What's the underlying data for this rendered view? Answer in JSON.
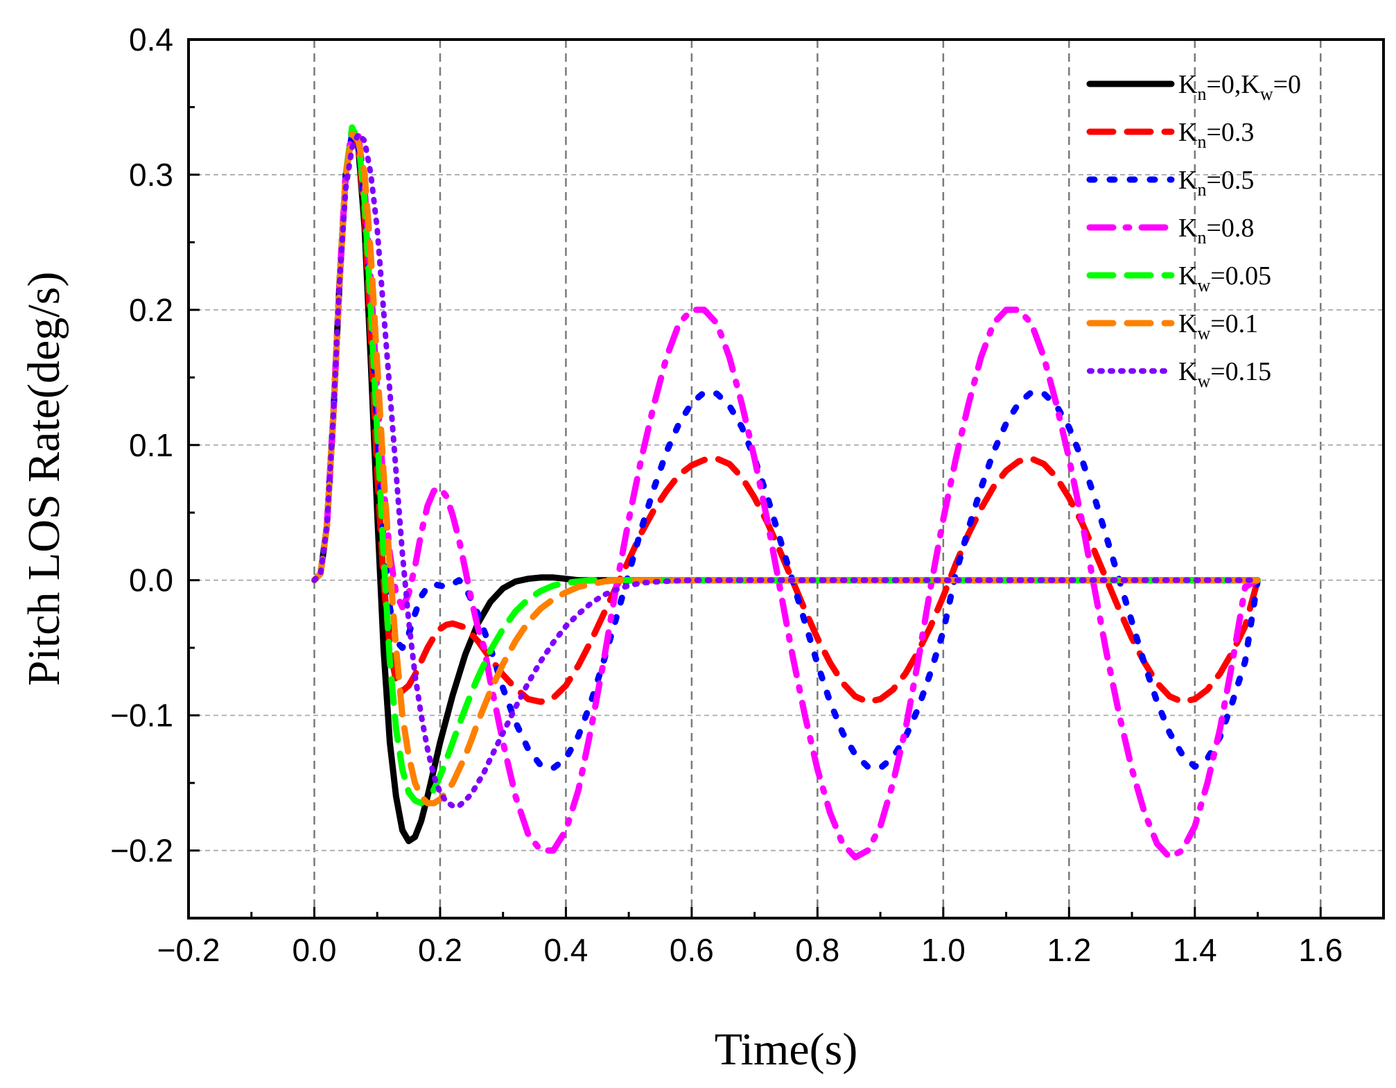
{
  "chart_data": {
    "type": "line",
    "title": "",
    "xlabel": "Time(s)",
    "ylabel": "Pitch LOS Rate(deg/s)",
    "xlim": [
      -0.2,
      1.7
    ],
    "ylim": [
      -0.25,
      0.4
    ],
    "xticks": [
      -0.2,
      0.0,
      0.2,
      0.4,
      0.6,
      0.8,
      1.0,
      1.2,
      1.4,
      1.6
    ],
    "xtick_labels": [
      "−0.2",
      "0.0",
      "0.2",
      "0.4",
      "0.6",
      "0.8",
      "1.0",
      "1.2",
      "1.4",
      "1.6"
    ],
    "yticks": [
      -0.2,
      -0.1,
      0.0,
      0.1,
      0.2,
      0.3,
      0.4
    ],
    "ytick_labels": [
      "−0.2",
      "−0.1",
      "0.0",
      "0.1",
      "0.2",
      "0.3",
      "0.4"
    ],
    "grid": true,
    "legend_position": "top-right",
    "series": [
      {
        "name": "Kn=0,Kw=0",
        "legend": [
          {
            "t": "K",
            "s": ""
          },
          {
            "t": "n",
            "s": "sub"
          },
          {
            "t": "=0,K",
            "s": ""
          },
          {
            "t": "w",
            "s": "sub"
          },
          {
            "t": "=0",
            "s": ""
          }
        ],
        "color": "#000000",
        "dash": "solid",
        "x": [
          0,
          0.01,
          0.02,
          0.03,
          0.04,
          0.05,
          0.06,
          0.07,
          0.08,
          0.09,
          0.1,
          0.11,
          0.12,
          0.13,
          0.14,
          0.15,
          0.16,
          0.17,
          0.18,
          0.19,
          0.2,
          0.22,
          0.24,
          0.26,
          0.28,
          0.3,
          0.32,
          0.34,
          0.36,
          0.38,
          0.4,
          0.42,
          0.45,
          0.5,
          0.6,
          0.8,
          1.0,
          1.2,
          1.4,
          1.5
        ],
        "y": [
          0,
          0.005,
          0.04,
          0.12,
          0.22,
          0.3,
          0.33,
          0.32,
          0.26,
          0.16,
          0.05,
          -0.05,
          -0.12,
          -0.16,
          -0.185,
          -0.193,
          -0.19,
          -0.178,
          -0.16,
          -0.14,
          -0.12,
          -0.085,
          -0.055,
          -0.032,
          -0.016,
          -0.006,
          -0.001,
          0.001,
          0.002,
          0.002,
          0.001,
          0.0,
          0.0,
          0,
          0,
          0,
          0,
          0,
          0,
          0
        ]
      },
      {
        "name": "Kn=0.3",
        "legend": [
          {
            "t": "K",
            "s": ""
          },
          {
            "t": "n",
            "s": "sub"
          },
          {
            "t": "=0.3",
            "s": ""
          }
        ],
        "color": "#ff0000",
        "dash": "dash",
        "x": [
          0,
          0.01,
          0.02,
          0.03,
          0.04,
          0.05,
          0.06,
          0.07,
          0.08,
          0.09,
          0.1,
          0.11,
          0.12,
          0.13,
          0.14,
          0.15,
          0.16,
          0.17,
          0.18,
          0.19,
          0.2,
          0.21,
          0.22,
          0.24,
          0.26,
          0.28,
          0.3,
          0.32,
          0.34,
          0.36,
          0.38,
          0.4,
          0.42,
          0.44,
          0.46,
          0.48,
          0.5,
          0.52,
          0.54,
          0.56,
          0.58,
          0.6,
          0.62,
          0.64,
          0.66,
          0.68,
          0.7,
          0.72,
          0.74,
          0.76,
          0.78,
          0.8,
          0.82,
          0.84,
          0.86,
          0.88,
          0.9,
          0.92,
          0.94,
          0.96,
          0.98,
          1.0,
          1.02,
          1.04,
          1.06,
          1.08,
          1.1,
          1.12,
          1.14,
          1.16,
          1.18,
          1.2,
          1.22,
          1.24,
          1.26,
          1.28,
          1.3,
          1.32,
          1.34,
          1.36,
          1.38,
          1.4,
          1.42,
          1.44,
          1.46,
          1.48,
          1.5
        ],
        "y": [
          0,
          0.005,
          0.04,
          0.12,
          0.22,
          0.3,
          0.33,
          0.32,
          0.27,
          0.18,
          0.08,
          0.0,
          -0.05,
          -0.075,
          -0.082,
          -0.078,
          -0.07,
          -0.06,
          -0.05,
          -0.042,
          -0.036,
          -0.033,
          -0.032,
          -0.035,
          -0.045,
          -0.058,
          -0.07,
          -0.08,
          -0.088,
          -0.09,
          -0.087,
          -0.078,
          -0.063,
          -0.045,
          -0.025,
          -0.005,
          0.015,
          0.035,
          0.052,
          0.066,
          0.078,
          0.085,
          0.089,
          0.09,
          0.086,
          0.076,
          0.061,
          0.043,
          0.022,
          0.0,
          -0.022,
          -0.043,
          -0.061,
          -0.076,
          -0.086,
          -0.09,
          -0.088,
          -0.081,
          -0.069,
          -0.053,
          -0.034,
          -0.012,
          0.012,
          0.034,
          0.053,
          0.069,
          0.081,
          0.088,
          0.09,
          0.086,
          0.076,
          0.061,
          0.043,
          0.022,
          0.0,
          -0.022,
          -0.043,
          -0.061,
          -0.076,
          -0.086,
          -0.09,
          -0.088,
          -0.081,
          -0.069,
          -0.053,
          -0.034,
          0.0
        ]
      },
      {
        "name": "Kn=0.5",
        "legend": [
          {
            "t": "K",
            "s": ""
          },
          {
            "t": "n",
            "s": "sub"
          },
          {
            "t": "=0.5",
            "s": ""
          }
        ],
        "color": "#0000ff",
        "dash": "dot",
        "x": [
          0,
          0.01,
          0.02,
          0.03,
          0.04,
          0.05,
          0.06,
          0.07,
          0.08,
          0.09,
          0.1,
          0.11,
          0.12,
          0.13,
          0.14,
          0.15,
          0.16,
          0.17,
          0.18,
          0.19,
          0.2,
          0.21,
          0.22,
          0.23,
          0.24,
          0.26,
          0.28,
          0.3,
          0.32,
          0.34,
          0.36,
          0.38,
          0.4,
          0.42,
          0.44,
          0.46,
          0.48,
          0.5,
          0.52,
          0.54,
          0.56,
          0.58,
          0.6,
          0.62,
          0.64,
          0.66,
          0.68,
          0.7,
          0.72,
          0.74,
          0.76,
          0.78,
          0.8,
          0.82,
          0.84,
          0.86,
          0.88,
          0.9,
          0.92,
          0.94,
          0.96,
          0.98,
          1.0,
          1.02,
          1.04,
          1.06,
          1.08,
          1.1,
          1.12,
          1.14,
          1.16,
          1.18,
          1.2,
          1.22,
          1.24,
          1.26,
          1.28,
          1.3,
          1.32,
          1.34,
          1.36,
          1.38,
          1.4,
          1.42,
          1.44,
          1.46,
          1.48,
          1.5
        ],
        "y": [
          0,
          0.005,
          0.04,
          0.12,
          0.22,
          0.3,
          0.33,
          0.32,
          0.28,
          0.2,
          0.11,
          0.03,
          -0.02,
          -0.045,
          -0.05,
          -0.04,
          -0.025,
          -0.012,
          -0.005,
          -0.003,
          -0.004,
          -0.005,
          -0.003,
          0.0,
          -0.005,
          -0.025,
          -0.05,
          -0.08,
          -0.105,
          -0.125,
          -0.137,
          -0.139,
          -0.132,
          -0.115,
          -0.09,
          -0.06,
          -0.028,
          0.005,
          0.038,
          0.068,
          0.095,
          0.116,
          0.131,
          0.139,
          0.138,
          0.129,
          0.113,
          0.09,
          0.062,
          0.031,
          0.0,
          -0.031,
          -0.062,
          -0.09,
          -0.113,
          -0.129,
          -0.138,
          -0.139,
          -0.131,
          -0.116,
          -0.095,
          -0.068,
          -0.038,
          0.005,
          0.038,
          0.068,
          0.095,
          0.116,
          0.131,
          0.139,
          0.138,
          0.129,
          0.113,
          0.09,
          0.062,
          0.031,
          0.0,
          -0.031,
          -0.062,
          -0.09,
          -0.113,
          -0.129,
          -0.138,
          -0.132,
          -0.116,
          -0.09,
          -0.06,
          0.0
        ]
      },
      {
        "name": "Kn=0.8",
        "legend": [
          {
            "t": "K",
            "s": ""
          },
          {
            "t": "n",
            "s": "sub"
          },
          {
            "t": "=0.8",
            "s": ""
          }
        ],
        "color": "#ff00ff",
        "dash": "dashdot",
        "x": [
          0,
          0.01,
          0.02,
          0.03,
          0.04,
          0.05,
          0.06,
          0.07,
          0.08,
          0.09,
          0.1,
          0.11,
          0.12,
          0.13,
          0.14,
          0.15,
          0.16,
          0.17,
          0.18,
          0.19,
          0.2,
          0.21,
          0.22,
          0.23,
          0.24,
          0.25,
          0.26,
          0.27,
          0.28,
          0.3,
          0.32,
          0.34,
          0.36,
          0.38,
          0.4,
          0.42,
          0.44,
          0.46,
          0.48,
          0.5,
          0.52,
          0.54,
          0.56,
          0.58,
          0.6,
          0.62,
          0.64,
          0.66,
          0.68,
          0.7,
          0.72,
          0.74,
          0.76,
          0.78,
          0.8,
          0.82,
          0.84,
          0.86,
          0.88,
          0.9,
          0.92,
          0.94,
          0.96,
          0.98,
          1.0,
          1.02,
          1.04,
          1.06,
          1.08,
          1.1,
          1.12,
          1.14,
          1.16,
          1.18,
          1.2,
          1.22,
          1.24,
          1.26,
          1.28,
          1.3,
          1.32,
          1.34,
          1.36,
          1.38,
          1.4,
          1.42,
          1.44,
          1.46,
          1.48,
          1.5
        ],
        "y": [
          0,
          0.005,
          0.04,
          0.12,
          0.22,
          0.3,
          0.335,
          0.33,
          0.29,
          0.22,
          0.14,
          0.07,
          0.02,
          -0.01,
          -0.02,
          -0.01,
          0.01,
          0.035,
          0.055,
          0.066,
          0.068,
          0.062,
          0.048,
          0.03,
          0.008,
          -0.015,
          -0.035,
          -0.05,
          -0.075,
          -0.12,
          -0.16,
          -0.188,
          -0.2,
          -0.2,
          -0.185,
          -0.155,
          -0.11,
          -0.06,
          -0.005,
          0.045,
          0.09,
          0.13,
          0.165,
          0.19,
          0.2,
          0.2,
          0.19,
          0.165,
          0.13,
          0.09,
          0.045,
          -0.005,
          -0.055,
          -0.1,
          -0.14,
          -0.172,
          -0.195,
          -0.205,
          -0.2,
          -0.182,
          -0.15,
          -0.11,
          -0.06,
          -0.005,
          0.045,
          0.09,
          0.13,
          0.165,
          0.19,
          0.2,
          0.2,
          0.19,
          0.165,
          0.13,
          0.09,
          0.045,
          -0.005,
          -0.055,
          -0.1,
          -0.14,
          -0.172,
          -0.195,
          -0.205,
          -0.2,
          -0.182,
          -0.15,
          -0.11,
          -0.06,
          -0.005,
          0.0
        ]
      },
      {
        "name": "Kw=0.05",
        "legend": [
          {
            "t": "K",
            "s": ""
          },
          {
            "t": "w",
            "s": "sub"
          },
          {
            "t": "=0.05",
            "s": ""
          }
        ],
        "color": "#00ff00",
        "dash": "dash",
        "x": [
          0,
          0.01,
          0.02,
          0.03,
          0.04,
          0.05,
          0.06,
          0.07,
          0.08,
          0.09,
          0.1,
          0.11,
          0.12,
          0.13,
          0.14,
          0.15,
          0.16,
          0.17,
          0.18,
          0.19,
          0.2,
          0.21,
          0.22,
          0.23,
          0.24,
          0.25,
          0.26,
          0.28,
          0.3,
          0.32,
          0.34,
          0.36,
          0.38,
          0.4,
          0.42,
          0.44,
          0.46,
          0.48,
          0.5,
          0.6,
          0.8,
          1.0,
          1.2,
          1.4,
          1.5
        ],
        "y": [
          0,
          0.005,
          0.04,
          0.12,
          0.22,
          0.3,
          0.335,
          0.325,
          0.28,
          0.2,
          0.11,
          0.02,
          -0.06,
          -0.11,
          -0.14,
          -0.157,
          -0.163,
          -0.165,
          -0.162,
          -0.155,
          -0.145,
          -0.133,
          -0.12,
          -0.107,
          -0.095,
          -0.083,
          -0.072,
          -0.052,
          -0.036,
          -0.023,
          -0.014,
          -0.008,
          -0.004,
          -0.002,
          -0.001,
          0.0,
          0.0,
          0.0,
          0,
          0,
          0,
          0,
          0,
          0,
          0
        ]
      },
      {
        "name": "Kw=0.1",
        "legend": [
          {
            "t": "K",
            "s": ""
          },
          {
            "t": "w",
            "s": "sub"
          },
          {
            "t": "=0.1",
            "s": ""
          }
        ],
        "color": "#ff8000",
        "dash": "dash",
        "x": [
          0,
          0.01,
          0.02,
          0.03,
          0.04,
          0.05,
          0.06,
          0.07,
          0.08,
          0.09,
          0.1,
          0.11,
          0.12,
          0.13,
          0.14,
          0.15,
          0.16,
          0.17,
          0.18,
          0.19,
          0.2,
          0.21,
          0.22,
          0.23,
          0.24,
          0.25,
          0.26,
          0.28,
          0.3,
          0.32,
          0.34,
          0.36,
          0.38,
          0.4,
          0.42,
          0.44,
          0.46,
          0.48,
          0.5,
          0.6,
          0.8,
          1.0,
          1.2,
          1.4,
          1.5
        ],
        "y": [
          0,
          0.005,
          0.04,
          0.12,
          0.22,
          0.3,
          0.33,
          0.325,
          0.3,
          0.24,
          0.16,
          0.08,
          0.01,
          -0.05,
          -0.1,
          -0.13,
          -0.15,
          -0.16,
          -0.165,
          -0.165,
          -0.162,
          -0.157,
          -0.15,
          -0.14,
          -0.13,
          -0.118,
          -0.105,
          -0.082,
          -0.062,
          -0.045,
          -0.031,
          -0.021,
          -0.014,
          -0.009,
          -0.005,
          -0.003,
          -0.001,
          0.0,
          0,
          0,
          0,
          0,
          0,
          0,
          0
        ]
      },
      {
        "name": "Kw=0.15",
        "legend": [
          {
            "t": "K",
            "s": ""
          },
          {
            "t": "w",
            "s": "sub"
          },
          {
            "t": "=0.15",
            "s": ""
          }
        ],
        "color": "#8000ff",
        "dash": "densedot",
        "x": [
          0,
          0.01,
          0.02,
          0.03,
          0.04,
          0.05,
          0.06,
          0.07,
          0.08,
          0.09,
          0.1,
          0.11,
          0.12,
          0.13,
          0.14,
          0.15,
          0.16,
          0.17,
          0.18,
          0.19,
          0.2,
          0.21,
          0.22,
          0.23,
          0.24,
          0.25,
          0.26,
          0.27,
          0.28,
          0.3,
          0.32,
          0.34,
          0.36,
          0.38,
          0.4,
          0.42,
          0.44,
          0.46,
          0.48,
          0.5,
          0.52,
          0.55,
          0.6,
          0.8,
          1.0,
          1.2,
          1.4,
          1.5
        ],
        "y": [
          0,
          0.005,
          0.04,
          0.12,
          0.22,
          0.29,
          0.32,
          0.33,
          0.325,
          0.3,
          0.26,
          0.2,
          0.14,
          0.08,
          0.02,
          -0.03,
          -0.07,
          -0.1,
          -0.125,
          -0.145,
          -0.157,
          -0.164,
          -0.167,
          -0.167,
          -0.163,
          -0.158,
          -0.15,
          -0.142,
          -0.132,
          -0.113,
          -0.094,
          -0.076,
          -0.06,
          -0.046,
          -0.034,
          -0.025,
          -0.017,
          -0.011,
          -0.007,
          -0.004,
          -0.002,
          -0.001,
          0,
          0,
          0,
          0,
          0,
          0
        ]
      }
    ]
  }
}
